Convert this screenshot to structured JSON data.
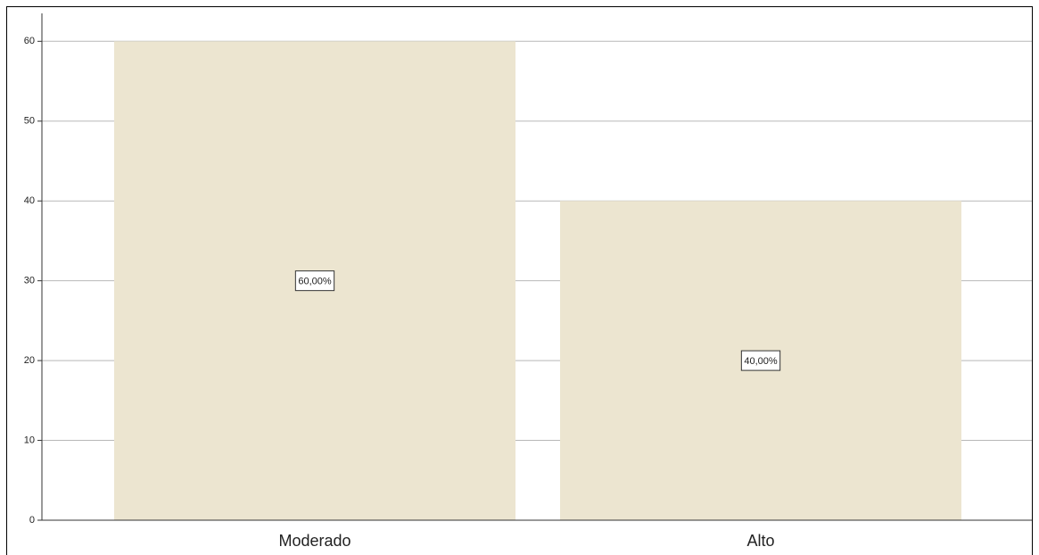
{
  "chart_data": {
    "type": "bar",
    "categories": [
      "Moderado",
      "Alto"
    ],
    "values": [
      60,
      40
    ],
    "value_labels": [
      "60,00%",
      "40,00%"
    ],
    "color": "#ece5d0",
    "ylim": [
      0,
      63.5
    ],
    "yticks": [
      0,
      10,
      20,
      30,
      40,
      50,
      60
    ],
    "grid": true
  }
}
